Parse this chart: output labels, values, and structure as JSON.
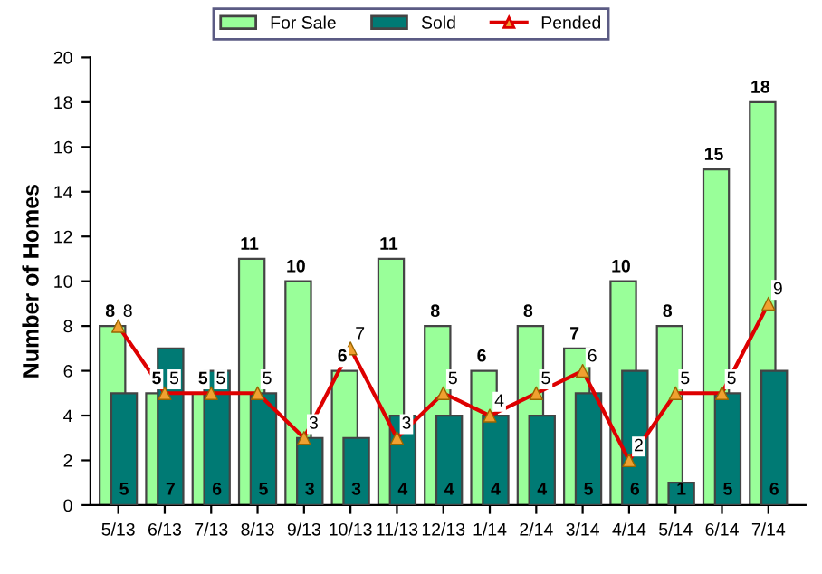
{
  "chart_data": {
    "type": "bar",
    "ylabel": "Number of Homes",
    "categories": [
      "5/13",
      "6/13",
      "7/13",
      "8/13",
      "9/13",
      "10/13",
      "11/13",
      "12/13",
      "1/14",
      "2/14",
      "3/14",
      "4/14",
      "5/14",
      "6/14",
      "7/14"
    ],
    "series": [
      {
        "name": "For Sale",
        "color": "#99ff99",
        "values": [
          8,
          5,
          5,
          11,
          10,
          6,
          11,
          8,
          6,
          8,
          7,
          10,
          8,
          15,
          18
        ]
      },
      {
        "name": "Sold",
        "color": "#007a74",
        "values": [
          5,
          7,
          6,
          5,
          3,
          3,
          4,
          4,
          4,
          4,
          5,
          6,
          1,
          5,
          6
        ]
      },
      {
        "name": "Pended",
        "type": "line",
        "color": "#dd0000",
        "marker": "triangle",
        "values": [
          8,
          5,
          5,
          5,
          3,
          7,
          3,
          5,
          4,
          5,
          6,
          2,
          5,
          5,
          9
        ]
      }
    ],
    "ylim": [
      0,
      20
    ],
    "yticks": [
      0,
      2,
      4,
      6,
      8,
      10,
      12,
      14,
      16,
      18,
      20
    ],
    "grid": false,
    "legend": "top",
    "data_labels": true
  }
}
